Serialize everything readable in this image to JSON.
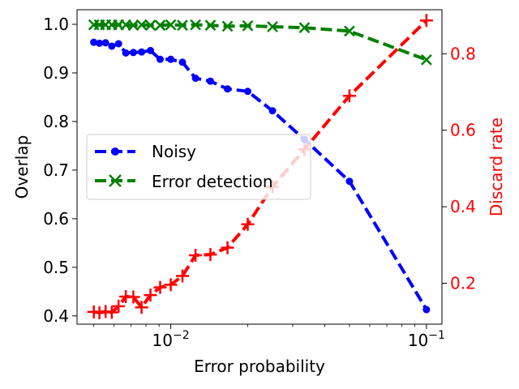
{
  "chart_data": {
    "type": "line",
    "title": "",
    "xlabel": "Error probability",
    "xscale": "log",
    "xlim": [
      0.0043,
      0.115
    ],
    "x_ticks": [
      {
        "value": 0.01,
        "base": "10",
        "exp": "−2"
      },
      {
        "value": 0.1,
        "base": "10",
        "exp": "−1"
      }
    ],
    "ylabel_left": "Overlap",
    "ylim_left": [
      0.383,
      1.03
    ],
    "y_ticks_left": [
      "0.4",
      "0.5",
      "0.6",
      "0.7",
      "0.8",
      "0.9",
      "1.0"
    ],
    "ylabel_right": "Discard rate",
    "ylabel_right_color": "#ff0000",
    "ylim_right": [
      0.093,
      0.915
    ],
    "y_ticks_right": [
      "0.2",
      "0.4",
      "0.6",
      "0.8"
    ],
    "legend": {
      "placement": "center-left",
      "entries": [
        "Noisy",
        "Error detection"
      ]
    },
    "series": [
      {
        "name": "Noisy",
        "axis": "left",
        "color": "#0000ff",
        "marker": "circle",
        "x": [
          0.005,
          0.00526,
          0.00556,
          0.00588,
          0.00625,
          0.00667,
          0.00714,
          0.00769,
          0.00833,
          0.00909,
          0.01,
          0.01111,
          0.0125,
          0.01429,
          0.01667,
          0.02,
          0.025,
          0.03333,
          0.05,
          0.1
        ],
        "values": [
          0.963,
          0.961,
          0.962,
          0.955,
          0.96,
          0.941,
          0.942,
          0.943,
          0.946,
          0.928,
          0.928,
          0.922,
          0.889,
          0.883,
          0.867,
          0.862,
          0.822,
          0.763,
          0.677,
          0.413
        ]
      },
      {
        "name": "Error detection",
        "axis": "left",
        "color": "#008000",
        "marker": "x",
        "x": [
          0.005,
          0.00526,
          0.00556,
          0.00588,
          0.00625,
          0.00667,
          0.00714,
          0.00769,
          0.00833,
          0.00909,
          0.01,
          0.01111,
          0.0125,
          0.01429,
          0.01667,
          0.02,
          0.025,
          0.03333,
          0.05,
          0.1
        ],
        "values": [
          0.999,
          0.999,
          0.999,
          0.999,
          0.999,
          0.999,
          0.998,
          0.999,
          0.998,
          0.998,
          0.999,
          0.998,
          0.999,
          0.998,
          0.996,
          0.997,
          0.995,
          0.993,
          0.986,
          0.927
        ]
      },
      {
        "axis": "right",
        "color": "#ff0000",
        "marker": "plus",
        "x": [
          0.005,
          0.00526,
          0.00556,
          0.00588,
          0.00625,
          0.00667,
          0.00714,
          0.00769,
          0.00833,
          0.00909,
          0.01,
          0.01111,
          0.0125,
          0.01429,
          0.01667,
          0.02,
          0.025,
          0.03333,
          0.05,
          0.1
        ],
        "values": [
          0.125,
          0.123,
          0.126,
          0.124,
          0.14,
          0.165,
          0.164,
          0.137,
          0.169,
          0.189,
          0.196,
          0.219,
          0.273,
          0.275,
          0.293,
          0.354,
          0.452,
          0.55,
          0.69,
          0.887
        ]
      }
    ]
  }
}
